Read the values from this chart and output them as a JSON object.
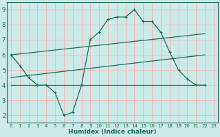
{
  "bg_color": "#cceae8",
  "grid_color": "#f5b8b8",
  "line_color": "#1a6b5a",
  "x_label": "Humidex (Indice chaleur)",
  "xlim": [
    -0.5,
    23.5
  ],
  "ylim": [
    1.5,
    9.5
  ],
  "yticks": [
    2,
    3,
    4,
    5,
    6,
    7,
    8,
    9
  ],
  "xticks": [
    0,
    1,
    2,
    3,
    4,
    5,
    6,
    7,
    8,
    9,
    10,
    11,
    12,
    13,
    14,
    15,
    16,
    17,
    18,
    19,
    20,
    21,
    22,
    23
  ],
  "zigzag_x": [
    0,
    1,
    2,
    3,
    4,
    5,
    6,
    7,
    8,
    9,
    10,
    11,
    12,
    13,
    14,
    15,
    16,
    17,
    18,
    19,
    20,
    21,
    22
  ],
  "zigzag_y": [
    6.0,
    5.3,
    4.5,
    4.0,
    4.0,
    3.5,
    2.0,
    2.2,
    4.0,
    7.0,
    7.5,
    8.35,
    8.5,
    8.5,
    9.0,
    8.2,
    8.2,
    7.5,
    6.2,
    5.0,
    4.4,
    4.0,
    4.0
  ],
  "upper_line_x": [
    0,
    22
  ],
  "upper_line_y": [
    6.0,
    7.4
  ],
  "lower_line_x": [
    0,
    22
  ],
  "lower_line_y": [
    4.5,
    6.0
  ],
  "flat_line_x": [
    0,
    22
  ],
  "flat_line_y": [
    4.0,
    4.0
  ]
}
